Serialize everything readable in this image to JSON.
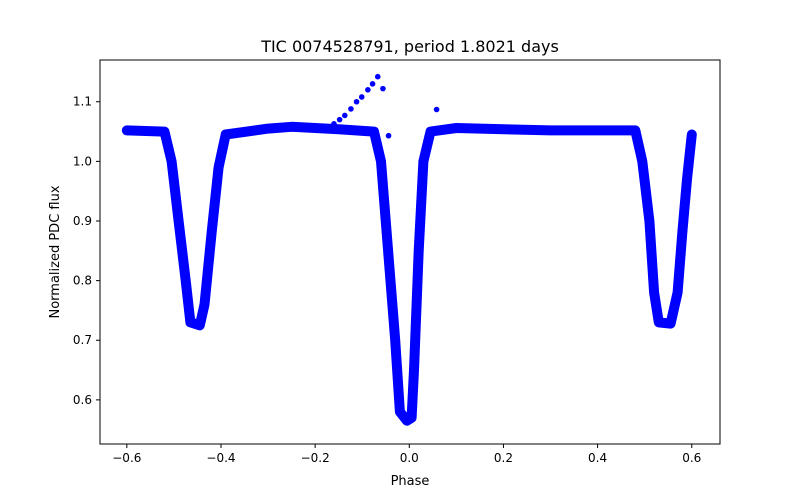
{
  "chart_data": {
    "type": "scatter",
    "title": "TIC 0074528791, period 1.8021 days",
    "xlabel": "Phase",
    "ylabel": "Normalized PDC flux",
    "xlim": [
      -0.657,
      0.66
    ],
    "ylim": [
      0.526,
      1.17
    ],
    "xticks": [
      -0.6,
      -0.4,
      -0.2,
      0.0,
      0.2,
      0.4,
      0.6
    ],
    "xtick_labels": [
      "−0.6",
      "−0.4",
      "−0.2",
      "0.0",
      "0.2",
      "0.4",
      "0.6"
    ],
    "yticks": [
      0.6,
      0.7,
      0.8,
      0.9,
      1.0,
      1.1
    ],
    "ytick_labels": [
      "0.6",
      "0.7",
      "0.8",
      "0.9",
      "1.0",
      "1.1"
    ],
    "grid": false,
    "color": "#0000ff",
    "series": [
      {
        "name": "phase-folded light curve",
        "x": [
          -0.6,
          -0.52,
          -0.505,
          -0.49,
          -0.475,
          -0.465,
          -0.445,
          -0.435,
          -0.42,
          -0.405,
          -0.39,
          -0.3,
          -0.25,
          -0.15,
          -0.075,
          -0.06,
          -0.045,
          -0.03,
          -0.02,
          -0.005,
          0.005,
          0.01,
          0.02,
          0.03,
          0.045,
          0.1,
          0.3,
          0.48,
          0.495,
          0.51,
          0.52,
          0.53,
          0.555,
          0.57,
          0.58,
          0.59,
          0.6
        ],
        "y": [
          1.052,
          1.05,
          1.0,
          0.9,
          0.8,
          0.73,
          0.725,
          0.76,
          0.88,
          0.99,
          1.045,
          1.055,
          1.058,
          1.054,
          1.05,
          1.0,
          0.85,
          0.7,
          0.58,
          0.565,
          0.57,
          0.65,
          0.85,
          1.0,
          1.05,
          1.056,
          1.052,
          1.052,
          1.0,
          0.9,
          0.78,
          0.73,
          0.728,
          0.78,
          0.88,
          0.97,
          1.045
        ]
      },
      {
        "name": "outliers",
        "x": [
          -0.16,
          -0.148,
          -0.137,
          -0.124,
          -0.112,
          -0.101,
          -0.088,
          -0.078,
          -0.067,
          -0.056,
          -0.044,
          0.058
        ],
        "y": [
          1.063,
          1.07,
          1.077,
          1.088,
          1.1,
          1.108,
          1.12,
          1.13,
          1.142,
          1.122,
          1.043,
          1.087
        ]
      }
    ]
  }
}
